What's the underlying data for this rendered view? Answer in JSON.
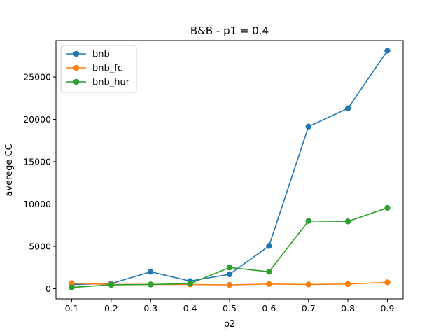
{
  "chart_data": {
    "type": "line",
    "title": "B&B - p1 = 0.4",
    "xlabel": "p2",
    "ylabel": "averege CC",
    "x": [
      0.1,
      0.2,
      0.3,
      0.4,
      0.5,
      0.6,
      0.7,
      0.8,
      0.9
    ],
    "x_tick_labels": [
      "0.1",
      "0.2",
      "0.3",
      "0.4",
      "0.5",
      "0.6",
      "0.7",
      "0.8",
      "0.9"
    ],
    "y_ticks": [
      0,
      5000,
      10000,
      15000,
      20000,
      25000
    ],
    "y_tick_labels": [
      "0",
      "5000",
      "10000",
      "15000",
      "20000",
      "25000"
    ],
    "xlim": [
      0.06,
      0.94
    ],
    "ylim": [
      -1200,
      29300
    ],
    "legend_position": "upper-left",
    "series": [
      {
        "name": "bnb",
        "color": "#1f77b4",
        "values": [
          500,
          600,
          2000,
          900,
          1700,
          5050,
          19150,
          21300,
          28100
        ]
      },
      {
        "name": "bnb_fc",
        "color": "#ff7f0e",
        "values": [
          650,
          500,
          500,
          500,
          450,
          550,
          500,
          550,
          750
        ]
      },
      {
        "name": "bnb_hur",
        "color": "#2ca02c",
        "values": [
          150,
          450,
          500,
          600,
          2500,
          2000,
          8000,
          7950,
          9550
        ]
      }
    ]
  }
}
